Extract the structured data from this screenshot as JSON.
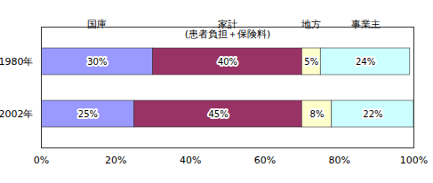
{
  "chart_data": {
    "type": "bar",
    "orientation": "horizontal",
    "stacked": true,
    "data_labels": true,
    "legend": "top",
    "grid": false,
    "categories": [
      "1980年",
      "2002年"
    ],
    "series": [
      {
        "name": "国庫",
        "color": "#9999ff",
        "values": [
          30,
          25
        ],
        "value_labels": [
          "30%",
          "25%"
        ]
      },
      {
        "name": "家計\n(患者負担＋保険料)",
        "color": "#993366",
        "values": [
          40,
          45
        ],
        "value_labels": [
          "40%",
          "45%"
        ]
      },
      {
        "name": "地方",
        "color": "#ffffcc",
        "values": [
          5,
          8
        ],
        "value_labels": [
          "5%",
          "8%"
        ]
      },
      {
        "name": "事業主",
        "color": "#ccffff",
        "values": [
          24,
          22
        ],
        "value_labels": [
          "24%",
          "22%"
        ]
      }
    ],
    "xlim": [
      0,
      100
    ],
    "xticks": [
      {
        "value": 0,
        "label": "0%"
      },
      {
        "value": 20,
        "label": "20%"
      },
      {
        "value": 40,
        "label": "40%"
      },
      {
        "value": 60,
        "label": "60%"
      },
      {
        "value": 80,
        "label": "80%"
      },
      {
        "value": 100,
        "label": "100%"
      }
    ]
  }
}
